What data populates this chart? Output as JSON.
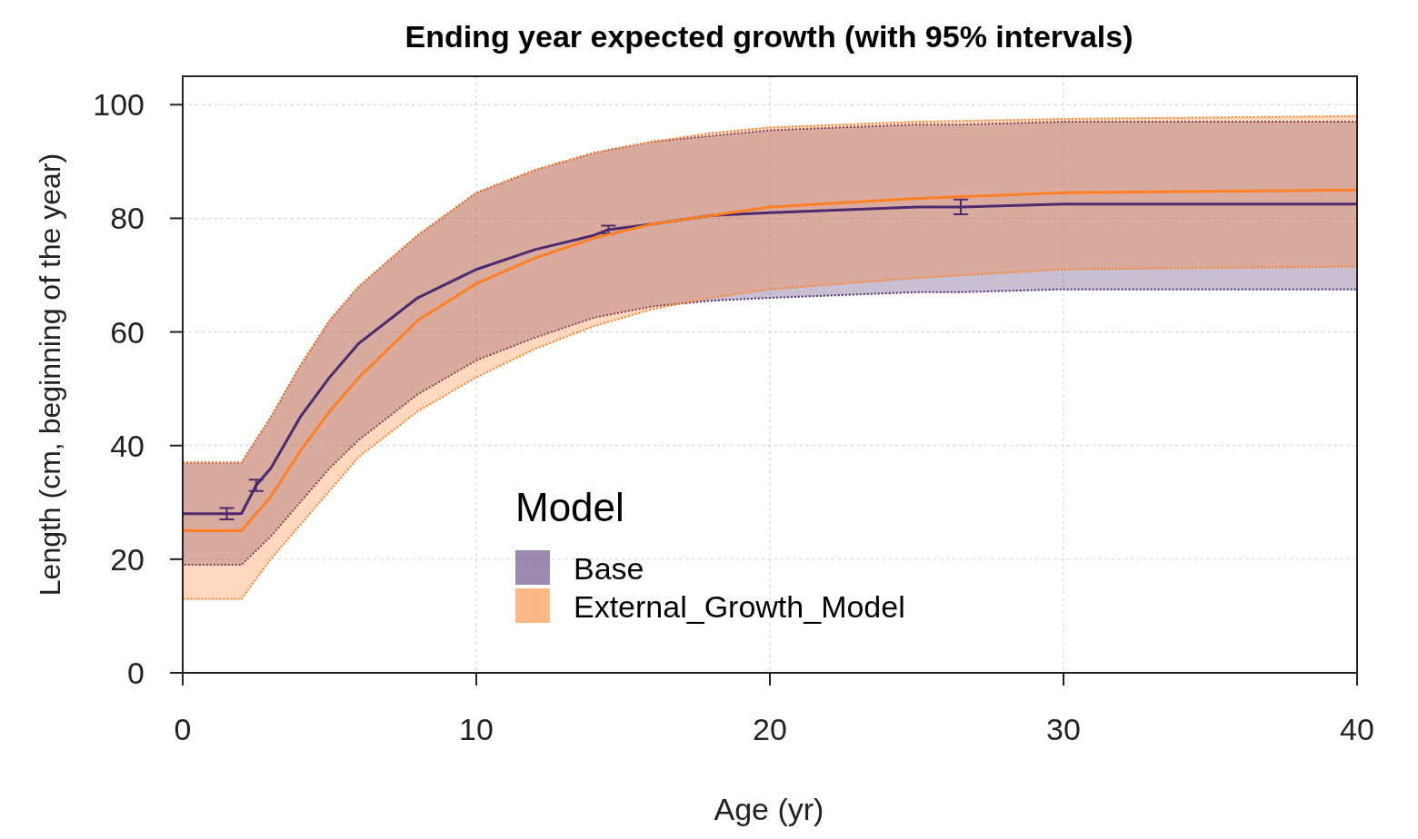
{
  "chart_data": {
    "type": "line",
    "title": "Ending year expected growth (with 95% intervals)",
    "xlabel": "Age (yr)",
    "ylabel": "Length (cm, beginning of the year)",
    "legend_title": "Model",
    "xlim": [
      0,
      40
    ],
    "xticks": [
      0,
      10,
      20,
      30,
      40
    ],
    "ylim": [
      0,
      105
    ],
    "yticks": [
      0,
      20,
      40,
      60,
      80,
      100
    ],
    "grid": true,
    "legend": "bottom",
    "series": [
      {
        "name": "Base",
        "color": "#4b2a6e",
        "x": [
          0,
          1.5,
          2,
          2.5,
          3,
          4,
          5,
          6,
          8,
          10,
          12,
          14,
          14.5,
          16,
          18,
          20,
          25,
          26.5,
          30,
          40
        ],
        "values": [
          28,
          28,
          28,
          33,
          36,
          45,
          52,
          58,
          66,
          71,
          74.5,
          77,
          78,
          79,
          80.5,
          81,
          82,
          82,
          82.5,
          82.5
        ],
        "errors": [
          null,
          1,
          null,
          1,
          null,
          null,
          null,
          null,
          null,
          null,
          null,
          null,
          0.7,
          null,
          null,
          null,
          null,
          1.3,
          null,
          null
        ],
        "lower": [
          19,
          19,
          19,
          21.5,
          24,
          30,
          36,
          41,
          49,
          55,
          59,
          62.5,
          63,
          64.5,
          65.5,
          66,
          67,
          67,
          67.5,
          67.5
        ],
        "upper": [
          37,
          37,
          37,
          41,
          45,
          54,
          62,
          68,
          77,
          84.5,
          88.5,
          91.5,
          92,
          93.5,
          94.5,
          95.5,
          96.5,
          96.5,
          97,
          97
        ]
      },
      {
        "name": "External_Growth_Model",
        "color": "#ff7f24",
        "x": [
          0,
          2,
          3,
          4,
          5,
          6,
          8,
          10,
          12,
          14,
          16,
          18,
          20,
          25,
          30,
          40
        ],
        "values": [
          25,
          25,
          31,
          39,
          46,
          52,
          62,
          68.5,
          73,
          76.5,
          79,
          80.5,
          82,
          83.5,
          84.5,
          85
        ],
        "lower": [
          13,
          13,
          20,
          26,
          32,
          38,
          46,
          52,
          57,
          61,
          64,
          66,
          67.5,
          69.5,
          71,
          71.5
        ],
        "upper": [
          37,
          37,
          45,
          54,
          62,
          68,
          77,
          84.5,
          88.5,
          91.5,
          93.5,
          95,
          96,
          97,
          97.5,
          98
        ]
      }
    ]
  }
}
